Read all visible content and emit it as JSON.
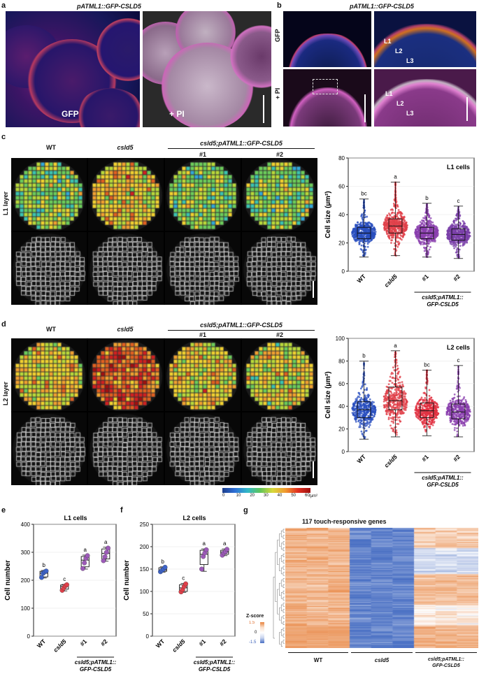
{
  "panels": {
    "a": {
      "label": "a",
      "title": "pATML1::GFP-CSLD5",
      "left_text": "GFP",
      "right_text": "+ PI"
    },
    "b": {
      "label": "b",
      "title": "pATML1::GFP-CSLD5",
      "row1": "GFP",
      "row2": "+ PI",
      "layers": [
        "L1",
        "L2",
        "L3"
      ]
    },
    "c": {
      "label": "c",
      "layer": "L1 layer",
      "cols": [
        "WT",
        "csld5",
        "#1",
        "#2"
      ],
      "group": "csld5;pATML1::GFP-CSLD5"
    },
    "d": {
      "label": "d",
      "layer": "L2 layer",
      "cols": [
        "WT",
        "csld5",
        "#1",
        "#2"
      ],
      "group": "csld5;pATML1::GFP-CSLD5",
      "colorbar_ticks": [
        "0",
        "10",
        "20",
        "30",
        "40",
        "50",
        "60"
      ],
      "colorbar_unit": "/µm²"
    },
    "e": {
      "label": "e"
    },
    "f": {
      "label": "f"
    },
    "g": {
      "label": "g",
      "title": "117 touch-responsive genes",
      "zscore_label": "Z-score",
      "zscore_ticks": [
        "1.5",
        "0",
        "-1.5"
      ],
      "groups": [
        "WT",
        "csld5",
        "csld5;pATML1::",
        "GFP-CSLD5"
      ]
    }
  },
  "chart_data": [
    {
      "id": "c-plot",
      "type": "boxplot",
      "title": "L1 cells",
      "ylabel": "Cell size (µm²)",
      "ylim": [
        0,
        80
      ],
      "yticks": [
        0,
        20,
        40,
        60,
        80
      ],
      "categories": [
        "WT",
        "csld5",
        "#1",
        "#2"
      ],
      "group_label": [
        "csld5;pATML1::",
        "GFP-CSLD5"
      ],
      "colors": [
        "#2a4fbf",
        "#e0404a",
        "#8a3fae",
        "#7a3fa8"
      ],
      "letters": [
        "bc",
        "a",
        "b",
        "c"
      ],
      "boxes": [
        {
          "min": 10,
          "q1": 23,
          "median": 27,
          "q3": 31,
          "max": 51
        },
        {
          "min": 11,
          "q1": 27,
          "median": 32,
          "q3": 37,
          "max": 63
        },
        {
          "min": 10,
          "q1": 23,
          "median": 27,
          "q3": 31,
          "max": 48
        },
        {
          "min": 9,
          "q1": 22,
          "median": 26,
          "q3": 30,
          "max": 46
        }
      ]
    },
    {
      "id": "d-plot",
      "type": "boxplot",
      "title": "L2 cells",
      "ylabel": "Cell size (µm²)",
      "ylim": [
        0,
        100
      ],
      "yticks": [
        0,
        20,
        40,
        60,
        80,
        100
      ],
      "categories": [
        "WT",
        "csld5",
        "#1",
        "#2"
      ],
      "group_label": [
        "csld5;pATML1::",
        "GFP-CSLD5"
      ],
      "colors": [
        "#2a4fbf",
        "#e0404a",
        "#e03040",
        "#8a3fae"
      ],
      "letters": [
        "b",
        "a",
        "bc",
        "c"
      ],
      "boxes": [
        {
          "min": 11,
          "q1": 30,
          "median": 37,
          "q3": 44,
          "max": 80
        },
        {
          "min": 13,
          "q1": 37,
          "median": 45,
          "q3": 57,
          "max": 89
        },
        {
          "min": 14,
          "q1": 30,
          "median": 36,
          "q3": 43,
          "max": 72
        },
        {
          "min": 13,
          "q1": 29,
          "median": 35,
          "q3": 42,
          "max": 76
        }
      ]
    },
    {
      "id": "e-plot",
      "type": "boxplot",
      "title": "L1 cells",
      "ylabel": "Cell number",
      "ylim": [
        0,
        400
      ],
      "yticks": [
        0,
        100,
        200,
        300,
        400
      ],
      "categories": [
        "WT",
        "csld5",
        "#1",
        "#2"
      ],
      "group_label": [
        "csld5;pATML1::",
        "GFP-CSLD5"
      ],
      "colors": [
        "#3d63c8",
        "#e0404a",
        "#9c5ab8",
        "#9c5ab8"
      ],
      "letters": [
        "b",
        "c",
        "a",
        "a"
      ],
      "boxes": [
        {
          "min": 208,
          "q1": 212,
          "median": 225,
          "q3": 232,
          "max": 235
        },
        {
          "min": 162,
          "q1": 168,
          "median": 178,
          "q3": 183,
          "max": 185
        },
        {
          "min": 240,
          "q1": 248,
          "median": 272,
          "q3": 285,
          "max": 290
        },
        {
          "min": 268,
          "q1": 276,
          "median": 296,
          "q3": 312,
          "max": 318
        }
      ],
      "points": [
        [
          210,
          225,
          230,
          233
        ],
        [
          164,
          172,
          180,
          184
        ],
        [
          242,
          262,
          278,
          288
        ],
        [
          270,
          284,
          300,
          315
        ]
      ]
    },
    {
      "id": "f-plot",
      "type": "boxplot",
      "title": "L2 cells",
      "ylabel": "Cell number",
      "ylim": [
        0,
        250
      ],
      "yticks": [
        0,
        50,
        100,
        150,
        200,
        250
      ],
      "categories": [
        "WT",
        "csld5",
        "#1",
        "#2"
      ],
      "group_label": [
        "csld5;pATML1::",
        "GFP-CSLD5"
      ],
      "colors": [
        "#3d63c8",
        "#e0404a",
        "#9c5ab8",
        "#9c5ab8"
      ],
      "letters": [
        "b",
        "c",
        "a",
        "a"
      ],
      "boxes": [
        {
          "min": 143,
          "q1": 145,
          "median": 148,
          "q3": 153,
          "max": 155
        },
        {
          "min": 98,
          "q1": 100,
          "median": 108,
          "q3": 115,
          "max": 118
        },
        {
          "min": 145,
          "q1": 160,
          "median": 183,
          "q3": 192,
          "max": 195
        },
        {
          "min": 180,
          "q1": 183,
          "median": 188,
          "q3": 192,
          "max": 195
        }
      ],
      "points": [
        [
          144,
          147,
          150,
          154
        ],
        [
          99,
          104,
          111,
          117
        ],
        [
          150,
          178,
          186,
          193
        ],
        [
          181,
          186,
          189,
          194
        ]
      ]
    }
  ]
}
